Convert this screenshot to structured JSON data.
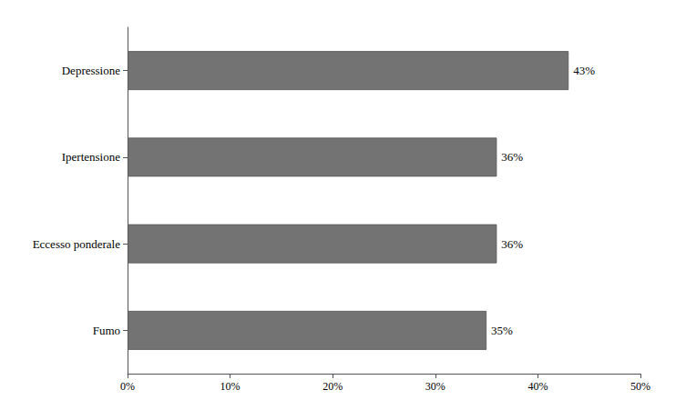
{
  "chart_data": {
    "type": "bar",
    "orientation": "horizontal",
    "categories": [
      "Fumo",
      "Eccesso ponderale",
      "Ipertensione",
      "Depressione"
    ],
    "values": [
      0.35,
      0.36,
      0.36,
      0.43
    ],
    "value_labels": [
      "35%",
      "36%",
      "36%",
      "43%"
    ],
    "data_labels": true,
    "color": "#737373",
    "xlim": [
      0,
      0.5
    ],
    "xticks": [
      {
        "value": 0.0,
        "label": "0%"
      },
      {
        "value": 0.1,
        "label": "10%"
      },
      {
        "value": 0.2,
        "label": "20%"
      },
      {
        "value": 0.3,
        "label": "30%"
      },
      {
        "value": 0.4,
        "label": "40%"
      },
      {
        "value": 0.5,
        "label": "50%"
      }
    ],
    "grid": false
  }
}
